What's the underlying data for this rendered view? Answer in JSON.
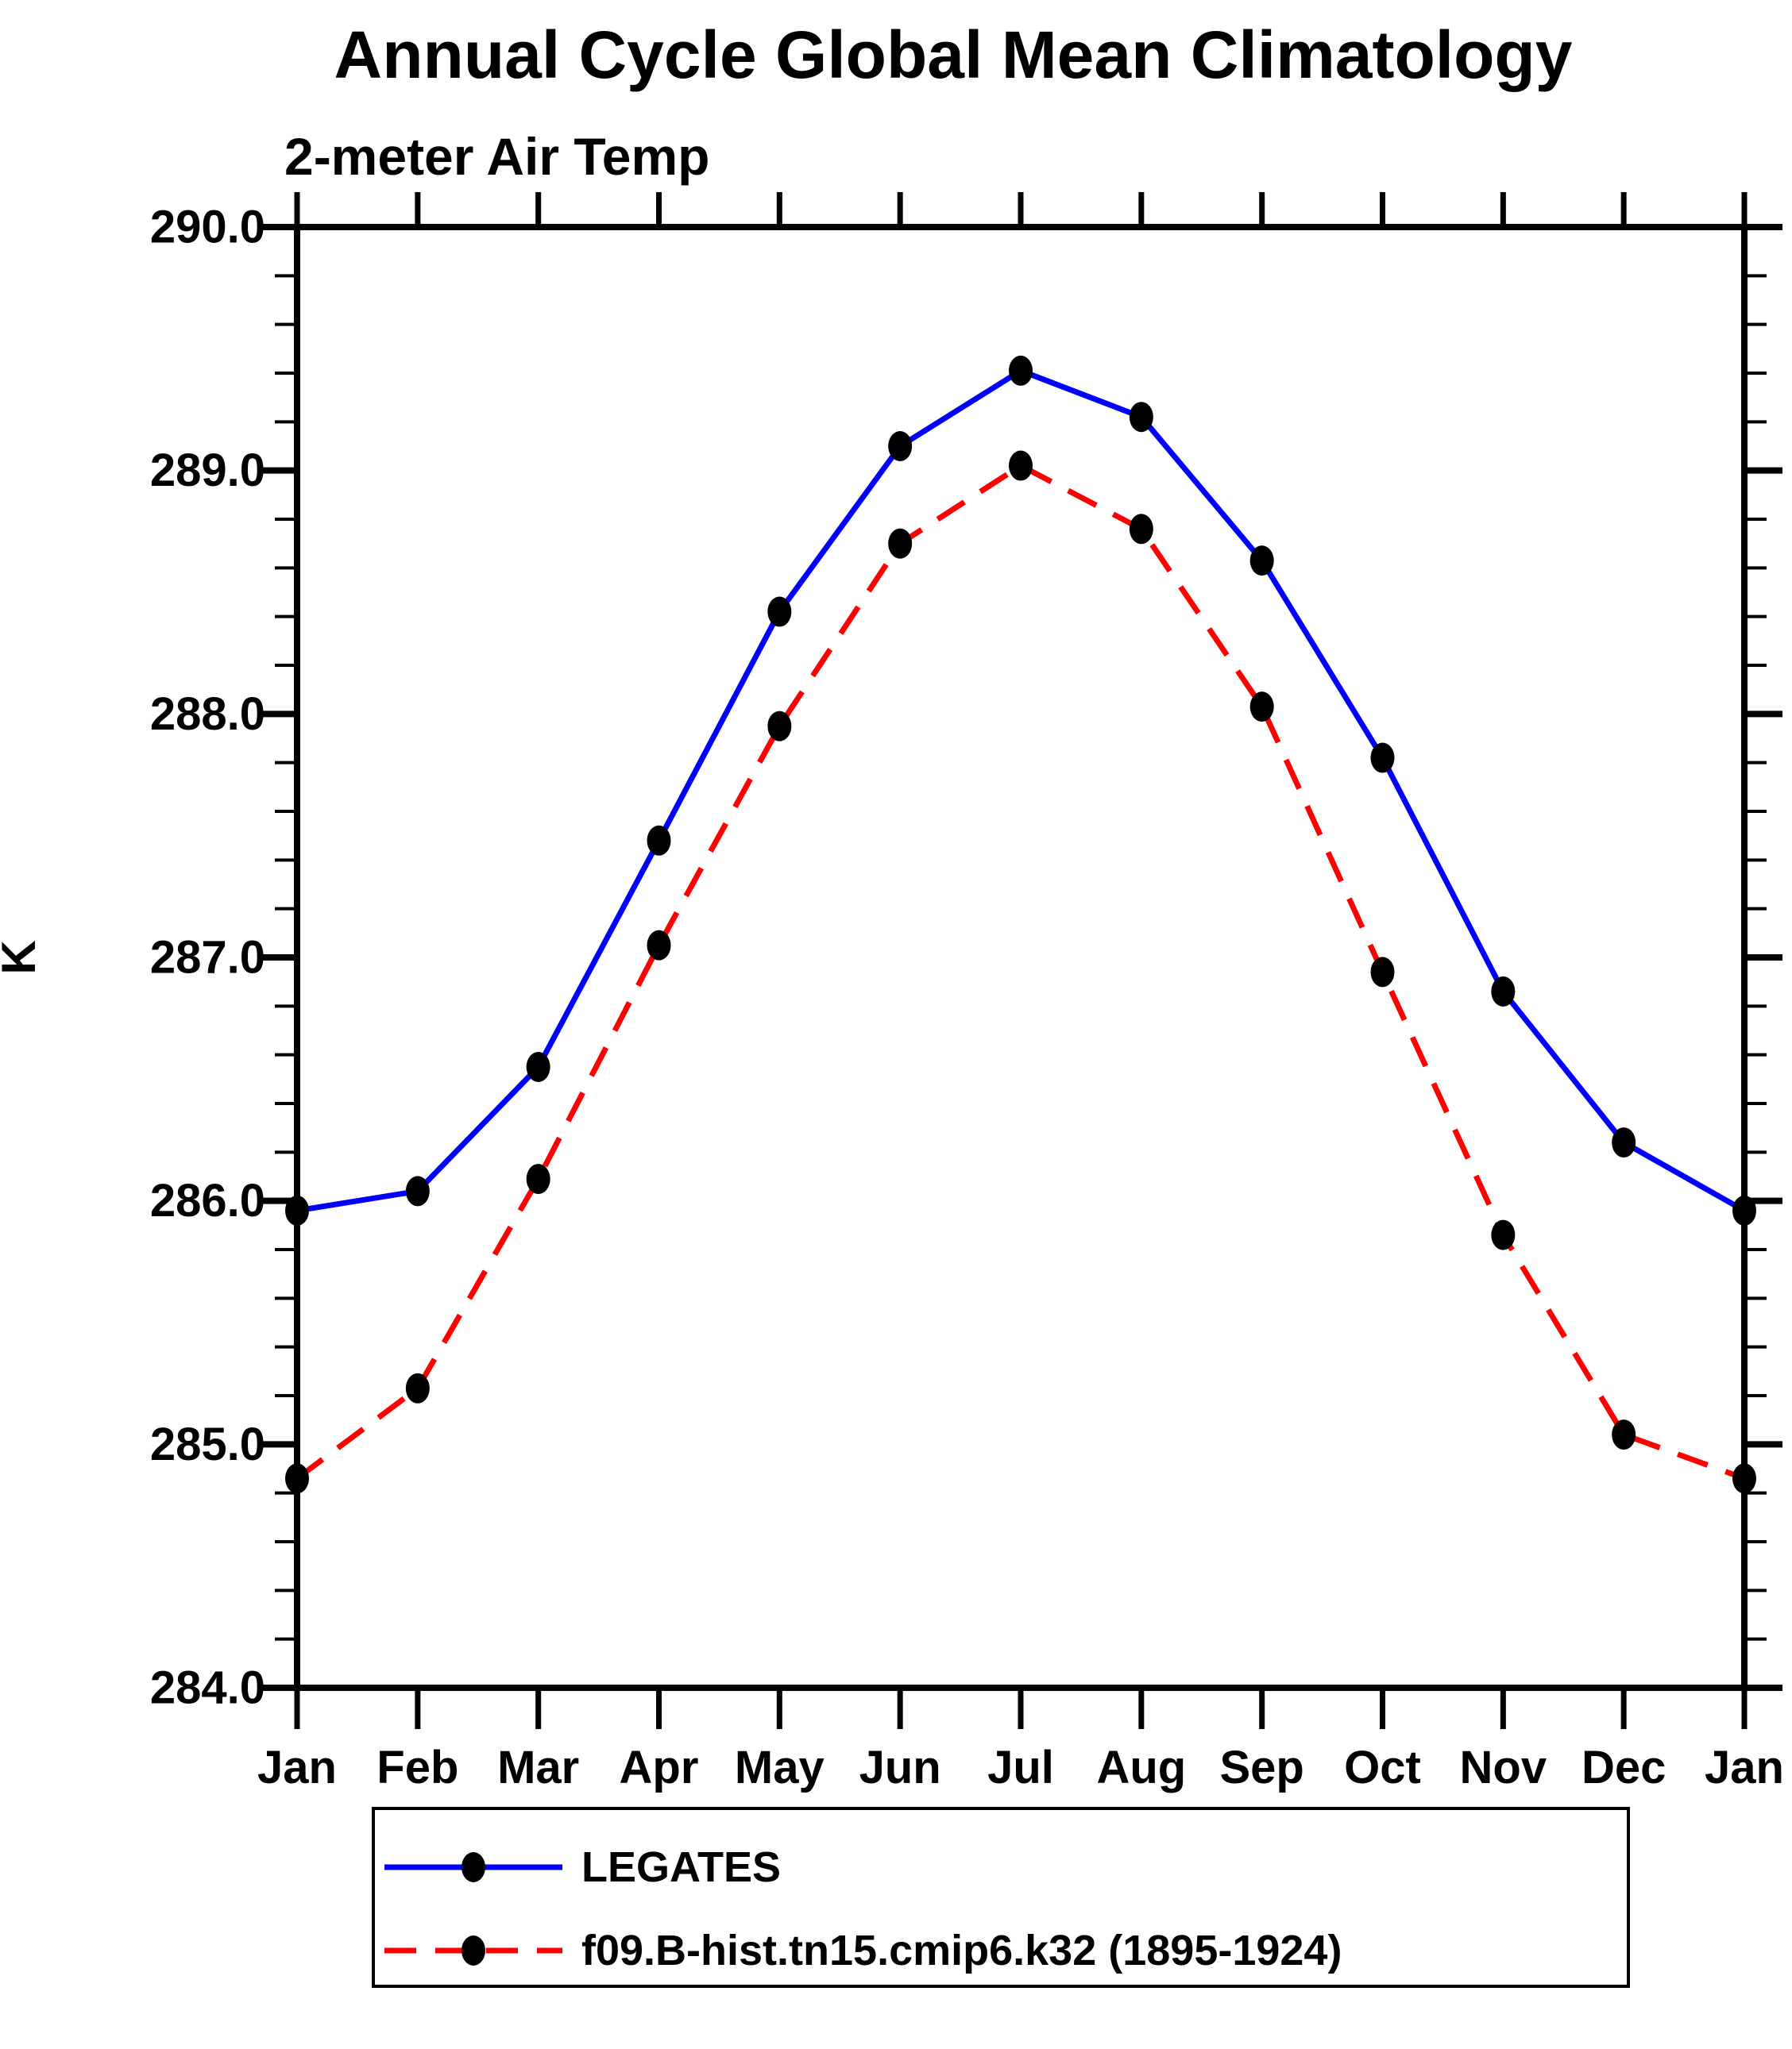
{
  "chart_data": {
    "type": "line",
    "title": "Annual Cycle Global Mean Climatology",
    "subtitle": "2-meter Air Temp",
    "ylabel": "K",
    "x_categories": [
      "Jan",
      "Feb",
      "Mar",
      "Apr",
      "May",
      "Jun",
      "Jul",
      "Aug",
      "Sep",
      "Oct",
      "Nov",
      "Dec",
      "Jan"
    ],
    "ylim": [
      284.0,
      290.0
    ],
    "ytick_interval": 1.0,
    "ytick_labels": [
      "290.0",
      "289.0",
      "288.0",
      "287.0",
      "286.0",
      "285.0",
      "284.0"
    ],
    "yminor_interval": 0.2,
    "grid": false,
    "legend_position": "bottom",
    "frame_color": "#000000",
    "marker": "filled-circle",
    "marker_color": "#000000",
    "series": [
      {
        "name": "LEGATES",
        "color": "#0000ff",
        "style": "solid",
        "values": [
          285.96,
          286.04,
          286.55,
          287.48,
          288.42,
          289.1,
          289.41,
          289.22,
          288.63,
          287.82,
          286.86,
          286.24,
          285.96
        ]
      },
      {
        "name": "f09.B-hist.tn15.cmip6.k32 (1895-1924)",
        "color": "#ff0000",
        "style": "dashed",
        "values": [
          284.86,
          285.23,
          286.09,
          287.05,
          287.95,
          288.7,
          289.02,
          288.76,
          288.03,
          286.94,
          285.86,
          285.04,
          284.86
        ]
      }
    ]
  }
}
